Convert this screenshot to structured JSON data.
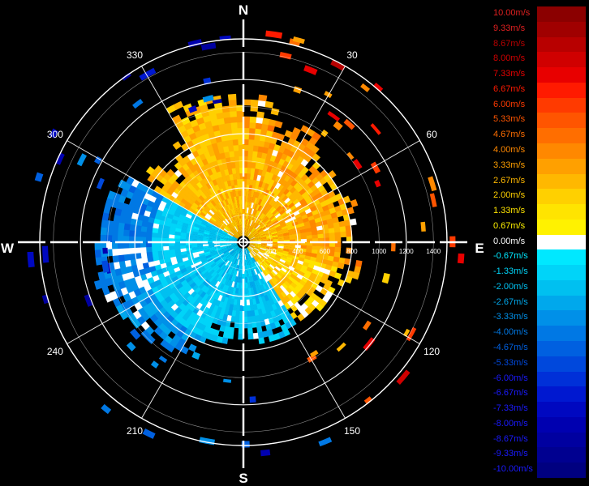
{
  "chart_data": {
    "type": "polar-radar",
    "compass": {
      "north": "N",
      "east": "E",
      "south": "S",
      "west": "W"
    },
    "angle_labels": [
      "30",
      "60",
      "120",
      "150",
      "210",
      "240",
      "300",
      "330"
    ],
    "range_labels": [
      "200",
      "400",
      "600",
      "800",
      "1000",
      "1200",
      "1400"
    ],
    "range_max": 1500,
    "legend": [
      {
        "label": "10.00m/s",
        "value": 10.0,
        "color": "#8b0000"
      },
      {
        "label": "9.33m/s",
        "value": 9.33,
        "color": "#a00000"
      },
      {
        "label": "8.67m/s",
        "value": 8.67,
        "color": "#b80000"
      },
      {
        "label": "8.00m/s",
        "value": 8.0,
        "color": "#d00000"
      },
      {
        "label": "7.33m/s",
        "value": 7.33,
        "color": "#e80000"
      },
      {
        "label": "6.67m/s",
        "value": 6.67,
        "color": "#ff1a00"
      },
      {
        "label": "6.00m/s",
        "value": 6.0,
        "color": "#ff3a00"
      },
      {
        "label": "5.33m/s",
        "value": 5.33,
        "color": "#ff5500"
      },
      {
        "label": "4.67m/s",
        "value": 4.67,
        "color": "#ff6e00"
      },
      {
        "label": "4.00m/s",
        "value": 4.0,
        "color": "#ff8800"
      },
      {
        "label": "3.33m/s",
        "value": 3.33,
        "color": "#ffa000"
      },
      {
        "label": "2.67m/s",
        "value": 2.67,
        "color": "#ffb800"
      },
      {
        "label": "2.00m/s",
        "value": 2.0,
        "color": "#ffd000"
      },
      {
        "label": "1.33m/s",
        "value": 1.33,
        "color": "#ffe400"
      },
      {
        "label": "0.67m/s",
        "value": 0.67,
        "color": "#fff200"
      },
      {
        "label": "0.00m/s",
        "value": 0.0,
        "color": "#ffffff"
      },
      {
        "label": "-0.67m/s",
        "value": -0.67,
        "color": "#00e8ff"
      },
      {
        "label": "-1.33m/s",
        "value": -1.33,
        "color": "#00d4f8"
      },
      {
        "label": "-2.00m/s",
        "value": -2.0,
        "color": "#00c0f0"
      },
      {
        "label": "-2.67m/s",
        "value": -2.67,
        "color": "#00a8ec"
      },
      {
        "label": "-3.33m/s",
        "value": -3.33,
        "color": "#0090e8"
      },
      {
        "label": "-4.00m/s",
        "value": -4.0,
        "color": "#0078e4"
      },
      {
        "label": "-4.67m/s",
        "value": -4.67,
        "color": "#0060e0"
      },
      {
        "label": "-5.33m/s",
        "value": -5.33,
        "color": "#0048dc"
      },
      {
        "label": "-6.00m/s",
        "value": -6.0,
        "color": "#0030d8"
      },
      {
        "label": "-6.67m/s",
        "value": -6.67,
        "color": "#0018d0"
      },
      {
        "label": "-7.33m/s",
        "value": -7.33,
        "color": "#0008c0"
      },
      {
        "label": "-8.00m/s",
        "value": -8.0,
        "color": "#0000b0"
      },
      {
        "label": "-8.67m/s",
        "value": -8.67,
        "color": "#0000a0"
      },
      {
        "label": "-9.33m/s",
        "value": -9.33,
        "color": "#000090"
      },
      {
        "label": "-10.00m/s",
        "value": -10.0,
        "color": "#000080"
      }
    ],
    "grid": true
  }
}
